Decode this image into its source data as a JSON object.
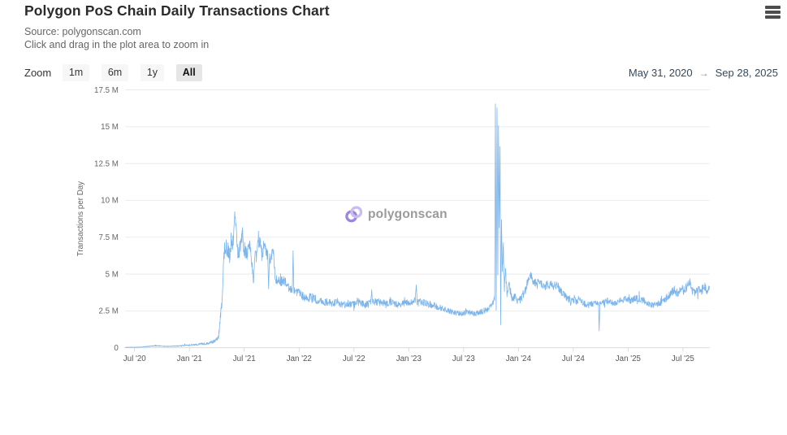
{
  "header": {
    "title": "Polygon PoS Chain Daily Transactions Chart",
    "source_line": "Source: polygonscan.com",
    "hint_line": "Click and drag in the plot area to zoom in"
  },
  "toolbar": {
    "zoom_label": "Zoom",
    "buttons": [
      {
        "label": "1m",
        "selected": false
      },
      {
        "label": "6m",
        "selected": false
      },
      {
        "label": "1y",
        "selected": false
      },
      {
        "label": "All",
        "selected": true
      }
    ],
    "range_from": "May 31, 2020",
    "range_arrow": "→",
    "range_to": "Sep 28, 2025"
  },
  "watermark": {
    "text": "polygonscan",
    "icon": "polygonscan-logo-icon",
    "icon_colors": [
      "#9c86d8",
      "#c9bcee"
    ],
    "text_color": "#9a9a9a"
  },
  "colors": {
    "line": "#7cb5ec",
    "grid": "#e6e6e6",
    "axis_line": "#ccd6eb",
    "tick": "#ccd6eb",
    "title": "#2b2b2b",
    "subtitle": "#666666",
    "y_label": "#666666",
    "x_label": "#555555",
    "axis_title": "#666666",
    "range_text": "#34495e",
    "button_bg": "#f7f7f7",
    "button_selected_bg": "#e6e6e6",
    "menu_icon": "#4d4d4d"
  },
  "chart_data": {
    "type": "line",
    "title": "Polygon PoS Chain Daily Transactions Chart",
    "xlabel": "",
    "ylabel": "Transactions per Day",
    "unit": "millions of transactions per day",
    "grid": true,
    "legend": false,
    "x_domain_years": [
      2020.413,
      2025.742
    ],
    "x_domain_dates": [
      "May 31, 2020",
      "Sep 28, 2025"
    ],
    "ylim_millions": [
      0,
      17.5
    ],
    "y_tick_values": [
      0,
      2.5,
      5,
      7.5,
      10,
      12.5,
      15,
      17.5
    ],
    "y_ticks": [
      "0",
      "2.5 M",
      "5 M",
      "7.5 M",
      "10 M",
      "12.5 M",
      "15 M",
      "17.5 M"
    ],
    "x_ticks": [
      {
        "t": 2020.5,
        "label": "Jul '20"
      },
      {
        "t": 2021.0,
        "label": "Jan '21"
      },
      {
        "t": 2021.5,
        "label": "Jul '21"
      },
      {
        "t": 2022.0,
        "label": "Jan '22"
      },
      {
        "t": 2022.5,
        "label": "Jul '22"
      },
      {
        "t": 2023.0,
        "label": "Jan '23"
      },
      {
        "t": 2023.5,
        "label": "Jul '23"
      },
      {
        "t": 2024.0,
        "label": "Jan '24"
      },
      {
        "t": 2024.5,
        "label": "Jul '24"
      },
      {
        "t": 2025.0,
        "label": "Jan '25"
      },
      {
        "t": 2025.5,
        "label": "Jul '25"
      }
    ],
    "series": [
      {
        "name": "Daily Transactions",
        "color": "#7cb5ec",
        "description": "Keypoints as [decimal_year, transactions_millions, daily_noise_amplitude_millions]; daily values jitter around the interpolated keypoint curve",
        "keypoints_t_value_noise": [
          [
            2020.413,
            0.025,
            0.01
          ],
          [
            2020.55,
            0.04,
            0.015
          ],
          [
            2020.69,
            0.14,
            0.04
          ],
          [
            2020.78,
            0.09,
            0.025
          ],
          [
            2020.9,
            0.12,
            0.03
          ],
          [
            2021.0,
            0.18,
            0.05
          ],
          [
            2021.1,
            0.25,
            0.07
          ],
          [
            2021.17,
            0.3,
            0.09
          ],
          [
            2021.22,
            0.45,
            0.12
          ],
          [
            2021.255,
            0.65,
            0.15
          ],
          [
            2021.27,
            1.0,
            0.2
          ],
          [
            2021.285,
            2.3,
            0.3
          ],
          [
            2021.3,
            3.3,
            0.3
          ],
          [
            2021.315,
            6.9,
            0.5
          ],
          [
            2021.34,
            6.8,
            0.55
          ],
          [
            2021.37,
            6.4,
            0.5
          ],
          [
            2021.4,
            7.4,
            0.5
          ],
          [
            2021.413,
            9.15,
            0.1
          ],
          [
            2021.425,
            8.2,
            0.4
          ],
          [
            2021.44,
            6.2,
            0.5
          ],
          [
            2021.46,
            6.8,
            0.5
          ],
          [
            2021.48,
            7.6,
            0.45
          ],
          [
            2021.5,
            6.6,
            0.5
          ],
          [
            2021.53,
            6.4,
            0.5
          ],
          [
            2021.55,
            7.0,
            0.45
          ],
          [
            2021.57,
            5.6,
            0.45
          ],
          [
            2021.585,
            4.6,
            0.35
          ],
          [
            2021.6,
            6.4,
            0.5
          ],
          [
            2021.62,
            6.9,
            0.45
          ],
          [
            2021.64,
            7.2,
            0.4
          ],
          [
            2021.66,
            6.3,
            0.45
          ],
          [
            2021.68,
            6.9,
            0.45
          ],
          [
            2021.7,
            6.6,
            0.4
          ],
          [
            2021.715,
            6.2,
            0.4
          ],
          [
            2021.722,
            3.9,
            0.15
          ],
          [
            2021.73,
            6.0,
            0.4
          ],
          [
            2021.75,
            6.3,
            0.4
          ],
          [
            2021.768,
            6.5,
            0.3
          ],
          [
            2021.78,
            5.0,
            0.35
          ],
          [
            2021.8,
            4.4,
            0.4
          ],
          [
            2021.83,
            4.6,
            0.45
          ],
          [
            2021.86,
            4.5,
            0.4
          ],
          [
            2021.89,
            4.2,
            0.35
          ],
          [
            2021.92,
            3.9,
            0.3
          ],
          [
            2021.938,
            4.0,
            0.25
          ],
          [
            2021.945,
            6.5,
            0.1
          ],
          [
            2021.952,
            3.9,
            0.2
          ],
          [
            2021.98,
            3.7,
            0.3
          ],
          [
            2022.0,
            3.7,
            0.3
          ],
          [
            2022.05,
            3.4,
            0.3
          ],
          [
            2022.1,
            3.4,
            0.35
          ],
          [
            2022.15,
            3.3,
            0.3
          ],
          [
            2022.2,
            3.1,
            0.3
          ],
          [
            2022.25,
            3.1,
            0.28
          ],
          [
            2022.3,
            3.0,
            0.25
          ],
          [
            2022.35,
            3.1,
            0.28
          ],
          [
            2022.4,
            2.9,
            0.25
          ],
          [
            2022.45,
            3.0,
            0.25
          ],
          [
            2022.5,
            2.95,
            0.25
          ],
          [
            2022.55,
            3.1,
            0.25
          ],
          [
            2022.6,
            2.9,
            0.22
          ],
          [
            2022.655,
            3.1,
            0.2
          ],
          [
            2022.662,
            3.95,
            0.1
          ],
          [
            2022.67,
            3.1,
            0.2
          ],
          [
            2022.72,
            3.1,
            0.25
          ],
          [
            2022.78,
            3.0,
            0.25
          ],
          [
            2022.84,
            3.1,
            0.25
          ],
          [
            2022.9,
            2.9,
            0.22
          ],
          [
            2022.95,
            3.0,
            0.22
          ],
          [
            2023.0,
            3.05,
            0.22
          ],
          [
            2023.06,
            3.2,
            0.25
          ],
          [
            2023.068,
            4.25,
            0.1
          ],
          [
            2023.076,
            3.1,
            0.2
          ],
          [
            2023.12,
            3.1,
            0.25
          ],
          [
            2023.18,
            2.95,
            0.25
          ],
          [
            2023.24,
            2.85,
            0.22
          ],
          [
            2023.3,
            2.7,
            0.22
          ],
          [
            2023.36,
            2.5,
            0.2
          ],
          [
            2023.42,
            2.35,
            0.2
          ],
          [
            2023.48,
            2.3,
            0.18
          ],
          [
            2023.54,
            2.4,
            0.2
          ],
          [
            2023.6,
            2.3,
            0.18
          ],
          [
            2023.66,
            2.45,
            0.2
          ],
          [
            2023.72,
            2.6,
            0.2
          ],
          [
            2023.76,
            3.0,
            0.2
          ],
          [
            2023.783,
            3.3,
            0.2
          ],
          [
            2023.79,
            16.56,
            0.05
          ],
          [
            2023.797,
            2.6,
            0.15
          ],
          [
            2023.805,
            16.3,
            0.05
          ],
          [
            2023.812,
            5.0,
            0.3
          ],
          [
            2023.818,
            15.1,
            0.05
          ],
          [
            2023.825,
            8.0,
            0.4
          ],
          [
            2023.832,
            13.7,
            0.05
          ],
          [
            2023.838,
            1.5,
            0.08
          ],
          [
            2023.845,
            9.0,
            0.4
          ],
          [
            2023.853,
            5.3,
            0.4
          ],
          [
            2023.862,
            6.9,
            0.4
          ],
          [
            2023.872,
            4.1,
            0.35
          ],
          [
            2023.882,
            5.3,
            0.35
          ],
          [
            2023.895,
            3.5,
            0.3
          ],
          [
            2023.915,
            4.4,
            0.35
          ],
          [
            2023.94,
            3.3,
            0.28
          ],
          [
            2023.965,
            3.5,
            0.28
          ],
          [
            2024.0,
            3.1,
            0.25
          ],
          [
            2024.03,
            3.4,
            0.28
          ],
          [
            2024.06,
            3.9,
            0.3
          ],
          [
            2024.09,
            4.6,
            0.3
          ],
          [
            2024.11,
            5.0,
            0.25
          ],
          [
            2024.13,
            4.6,
            0.3
          ],
          [
            2024.16,
            4.35,
            0.3
          ],
          [
            2024.2,
            4.4,
            0.3
          ],
          [
            2024.24,
            4.2,
            0.3
          ],
          [
            2024.28,
            4.3,
            0.3
          ],
          [
            2024.32,
            4.2,
            0.28
          ],
          [
            2024.35,
            4.3,
            0.28
          ],
          [
            2024.38,
            3.9,
            0.28
          ],
          [
            2024.41,
            3.6,
            0.25
          ],
          [
            2024.44,
            3.4,
            0.25
          ],
          [
            2024.47,
            3.2,
            0.22
          ],
          [
            2024.5,
            3.2,
            0.25
          ],
          [
            2024.53,
            3.2,
            0.25
          ],
          [
            2024.56,
            3.3,
            0.25
          ],
          [
            2024.6,
            3.0,
            0.22
          ],
          [
            2024.64,
            2.9,
            0.22
          ],
          [
            2024.68,
            3.0,
            0.22
          ],
          [
            2024.71,
            3.1,
            0.22
          ],
          [
            2024.73,
            3.0,
            0.15
          ],
          [
            2024.736,
            1.1,
            0.05
          ],
          [
            2024.742,
            3.0,
            0.15
          ],
          [
            2024.78,
            3.1,
            0.22
          ],
          [
            2024.83,
            3.2,
            0.25
          ],
          [
            2024.88,
            3.0,
            0.22
          ],
          [
            2024.93,
            3.2,
            0.22
          ],
          [
            2024.98,
            3.3,
            0.22
          ],
          [
            2025.02,
            3.2,
            0.22
          ],
          [
            2025.06,
            3.3,
            0.25
          ],
          [
            2025.1,
            3.35,
            0.25
          ],
          [
            2025.14,
            3.2,
            0.25
          ],
          [
            2025.18,
            3.0,
            0.22
          ],
          [
            2025.22,
            2.9,
            0.22
          ],
          [
            2025.26,
            3.0,
            0.22
          ],
          [
            2025.3,
            3.1,
            0.25
          ],
          [
            2025.34,
            3.3,
            0.25
          ],
          [
            2025.38,
            3.6,
            0.28
          ],
          [
            2025.42,
            3.9,
            0.3
          ],
          [
            2025.45,
            3.7,
            0.3
          ],
          [
            2025.48,
            4.0,
            0.3
          ],
          [
            2025.51,
            3.9,
            0.3
          ],
          [
            2025.54,
            4.2,
            0.3
          ],
          [
            2025.565,
            4.55,
            0.25
          ],
          [
            2025.58,
            3.9,
            0.3
          ],
          [
            2025.61,
            3.7,
            0.28
          ],
          [
            2025.64,
            3.9,
            0.28
          ],
          [
            2025.67,
            3.9,
            0.3
          ],
          [
            2025.7,
            4.1,
            0.3
          ],
          [
            2025.72,
            3.9,
            0.28
          ],
          [
            2025.742,
            4.0,
            0.2
          ]
        ]
      }
    ]
  }
}
